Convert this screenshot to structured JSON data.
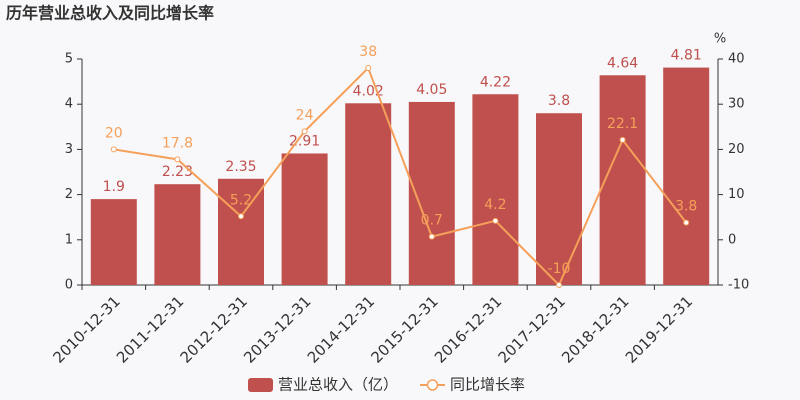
{
  "chart_data": {
    "type": "bar",
    "title": "历年营业总收入及同比增长率",
    "categories": [
      "2010-12-31",
      "2011-12-31",
      "2012-12-31",
      "2013-12-31",
      "2014-12-31",
      "2015-12-31",
      "2016-12-31",
      "2017-12-31",
      "2018-12-31",
      "2019-12-31"
    ],
    "series": [
      {
        "name": "营业总收入（亿）",
        "type": "bar",
        "color": "#c0504d",
        "values": [
          1.9,
          2.23,
          2.35,
          2.91,
          4.02,
          4.05,
          4.22,
          3.8,
          4.64,
          4.81
        ]
      },
      {
        "name": "同比增长率",
        "type": "line",
        "axis": "y2",
        "color": "#f5a05a",
        "values": [
          20,
          17.8,
          5.2,
          24,
          38,
          0.7,
          4.2,
          -10,
          22.1,
          3.8
        ]
      }
    ],
    "ylim": [
      0,
      5
    ],
    "yticks": [
      0,
      1,
      2,
      3,
      4,
      5
    ],
    "y2lim": [
      -10,
      40
    ],
    "y2ticks": [
      -10,
      0,
      10,
      20,
      30,
      40
    ],
    "y2label": "%"
  }
}
